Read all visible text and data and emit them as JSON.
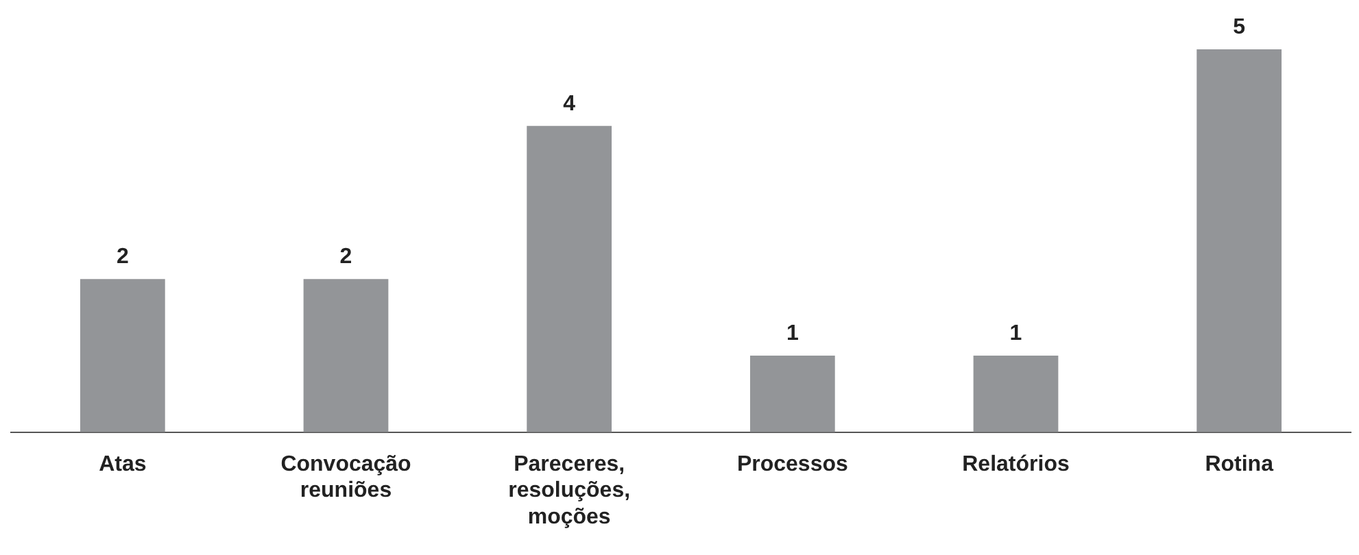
{
  "chart_data": {
    "type": "bar",
    "categories": [
      "Atas",
      "Convocação reuniões",
      "Pareceres, resoluções, moções",
      "Processos",
      "Relatórios",
      "Rotina"
    ],
    "values": [
      2,
      2,
      4,
      1,
      1,
      5
    ],
    "color": "#939598",
    "data_labels": true,
    "grid": false,
    "legend": false
  }
}
